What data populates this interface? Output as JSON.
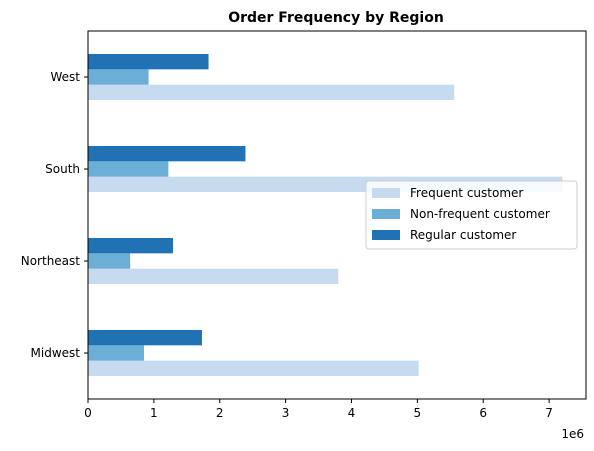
{
  "chart_data": {
    "type": "bar",
    "orientation": "horizontal",
    "title": "Order Frequency by Region",
    "xlabel": "",
    "ylabel": "",
    "x_offset_label": "1e6",
    "categories": [
      "Midwest",
      "Northeast",
      "South",
      "West"
    ],
    "series": [
      {
        "name": "Frequent customer",
        "color": "#c6dbef",
        "values": [
          5020000,
          3800000,
          7200000,
          5560000
        ]
      },
      {
        "name": "Non-frequent customer",
        "color": "#6baed6",
        "values": [
          850000,
          640000,
          1220000,
          920000
        ]
      },
      {
        "name": "Regular customer",
        "color": "#2171b5",
        "values": [
          1730000,
          1290000,
          2390000,
          1830000
        ]
      }
    ],
    "xlim": [
      0,
      7560000
    ],
    "xticks": [
      0,
      1000000,
      2000000,
      3000000,
      4000000,
      5000000,
      6000000,
      7000000
    ],
    "xtick_labels": [
      "0",
      "1",
      "2",
      "3",
      "4",
      "5",
      "6",
      "7"
    ],
    "grid": false,
    "legend_position": "center-right"
  }
}
